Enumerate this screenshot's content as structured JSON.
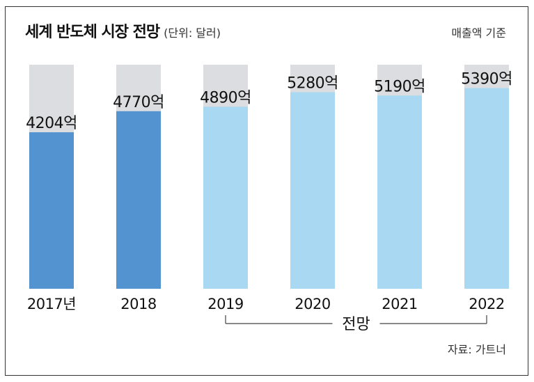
{
  "header": {
    "title": "세계 반도체 시장 전망",
    "unit": "(단위: 달러)",
    "basis": "매출액 기준"
  },
  "footer": {
    "source": "자료: 가트너",
    "forecast_label": "전망"
  },
  "chart_data": {
    "type": "bar",
    "title": "세계 반도체 시장 전망",
    "categories": [
      "2017년",
      "2018",
      "2019",
      "2020",
      "2021",
      "2022"
    ],
    "values": [
      4204,
      4770,
      4890,
      5280,
      5190,
      5390
    ],
    "value_labels": [
      "4204억",
      "4770억",
      "4890억",
      "5280억",
      "5190억",
      "5390억"
    ],
    "ylim": [
      0,
      6000
    ],
    "forecast": [
      false,
      false,
      true,
      true,
      true,
      true
    ],
    "grid": false,
    "legend": "none",
    "colors": {
      "actual": "#5393d0",
      "forecast": "#a8d8f2",
      "background_bar": "#dcdde0"
    }
  }
}
